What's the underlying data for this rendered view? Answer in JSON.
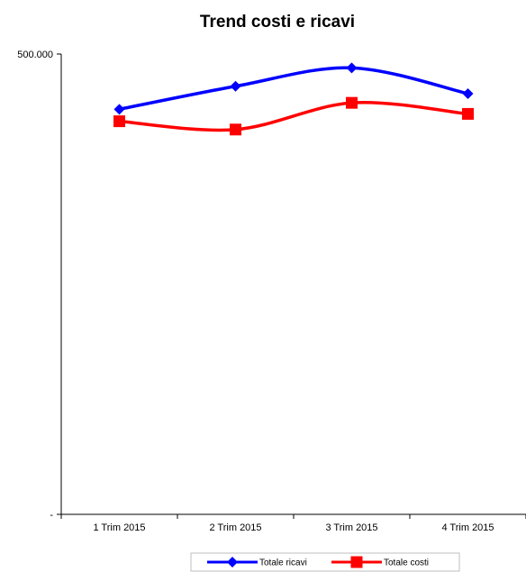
{
  "chart_data": {
    "type": "line",
    "title": "Trend costi e ricavi",
    "xlabel": "",
    "ylabel": "",
    "categories": [
      "1 Trim 2015",
      "2 Trim 2015",
      "3 Trim 2015",
      "4 Trim 2015"
    ],
    "y_tick_labels": [
      "500.000",
      "-"
    ],
    "ylim": [
      0,
      500000
    ],
    "smooth": true,
    "grid": false,
    "legend_position": "bottom",
    "series": [
      {
        "name": "Totale ricavi",
        "color": "#0000ff",
        "marker": "diamond",
        "values": [
          440000,
          465000,
          485000,
          457000
        ]
      },
      {
        "name": "Totale costi",
        "color": "#ff0000",
        "marker": "square",
        "values": [
          427000,
          418000,
          447000,
          435000
        ]
      }
    ]
  }
}
